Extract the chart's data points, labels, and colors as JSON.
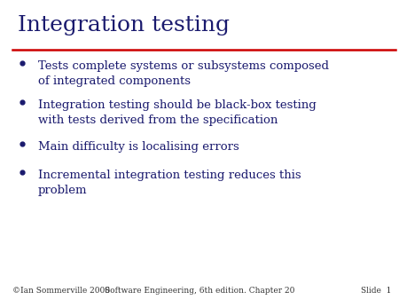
{
  "title": "Integration testing",
  "title_color": "#1a1a6e",
  "title_fontsize": 18,
  "line_color": "#cc0000",
  "bullet_color": "#1a1a6e",
  "text_color": "#1a1a6e",
  "background_color": "#ffffff",
  "bullets": [
    "Tests complete systems or subsystems composed\nof integrated components",
    "Integration testing should be black-box testing\nwith tests derived from the specification",
    "Main difficulty is localising errors",
    "Incremental integration testing reduces this\nproblem"
  ],
  "bullet_fontsize": 9.5,
  "footer_left": "©Ian Sommerville 2000",
  "footer_center": "Software Engineering, 6th edition. Chapter 20",
  "footer_right": "Slide  1",
  "footer_fontsize": 6.5
}
